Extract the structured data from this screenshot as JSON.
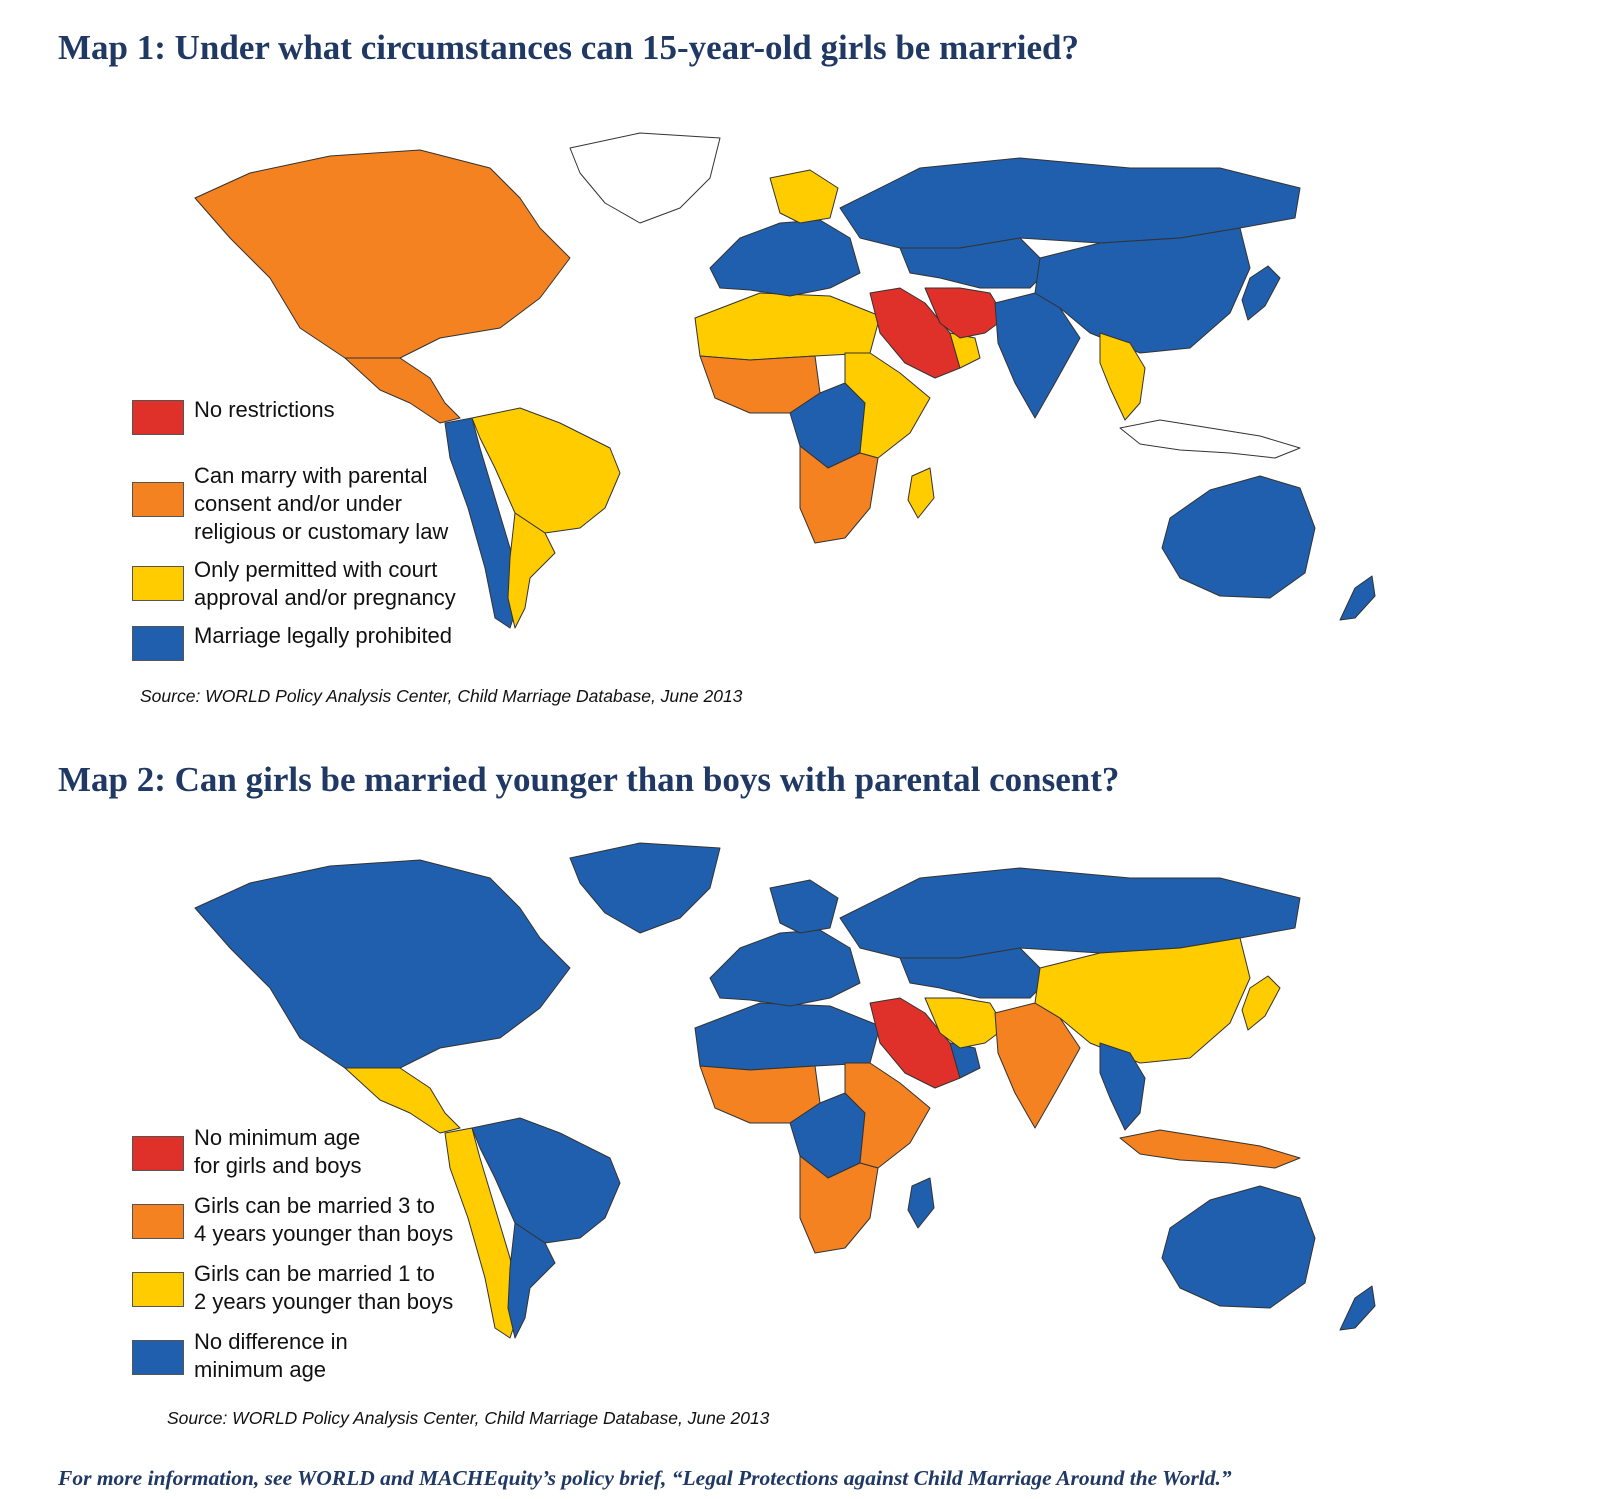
{
  "colors": {
    "red": "#e0302a",
    "orange": "#f58220",
    "yellow": "#ffcc00",
    "blue": "#1f5fae",
    "none": "#ffffff"
  },
  "map1": {
    "title": "Map 1: Under what circumstances can 15-year-old girls be married?",
    "legend": [
      {
        "color": "red",
        "label": "No restrictions"
      },
      {
        "color": "orange",
        "label": "Can marry with parental\nconsent and/or under\nreligious or customary law"
      },
      {
        "color": "yellow",
        "label": "Only permitted with court\napproval and/or pregnancy"
      },
      {
        "color": "blue",
        "label": "Marriage legally prohibited"
      }
    ],
    "regions": {
      "north_america": "orange",
      "greenland": "none",
      "central_america": "orange",
      "south_america_west": "blue",
      "south_america_main": "yellow",
      "south_america_south": "yellow",
      "north_africa": "yellow",
      "west_africa": "orange",
      "central_africa": "blue",
      "east_africa": "yellow",
      "southern_africa": "orange",
      "europe": "blue",
      "scandinavia": "yellow",
      "russia": "blue",
      "middle_east": "red",
      "gulf": "yellow",
      "iran_region": "red",
      "central_asia": "blue",
      "south_asia": "blue",
      "china": "blue",
      "southeast_asia": "yellow",
      "indonesia": "none",
      "japan": "blue",
      "australia": "blue",
      "new_zealand": "blue",
      "madagascar": "yellow"
    },
    "source": "Source: WORLD Policy Analysis Center, Child Marriage Database, June 2013"
  },
  "map2": {
    "title": "Map 2: Can girls be married younger than boys with parental consent?",
    "legend": [
      {
        "color": "red",
        "label": "No minimum age\nfor girls and boys"
      },
      {
        "color": "orange",
        "label": "Girls can be married 3 to\n4 years younger than boys"
      },
      {
        "color": "yellow",
        "label": "Girls can be married 1 to\n2 years younger than boys"
      },
      {
        "color": "blue",
        "label": "No difference in\nminimum age"
      }
    ],
    "regions": {
      "north_america": "blue",
      "greenland": "blue",
      "central_america": "yellow",
      "south_america_west": "yellow",
      "south_america_main": "blue",
      "south_america_south": "blue",
      "north_africa": "blue",
      "west_africa": "orange",
      "central_africa": "blue",
      "east_africa": "orange",
      "southern_africa": "orange",
      "europe": "blue",
      "scandinavia": "blue",
      "russia": "blue",
      "middle_east": "red",
      "gulf": "blue",
      "iran_region": "yellow",
      "central_asia": "blue",
      "south_asia": "orange",
      "china": "yellow",
      "southeast_asia": "blue",
      "indonesia": "orange",
      "japan": "yellow",
      "australia": "blue",
      "new_zealand": "blue",
      "madagascar": "blue"
    },
    "source": "Source: WORLD Policy Analysis Center, Child Marriage Database, June 2013"
  },
  "footer": "For more information, see WORLD and MACHEquity’s policy brief, “Legal Protections against Child Marriage Around the World.”"
}
